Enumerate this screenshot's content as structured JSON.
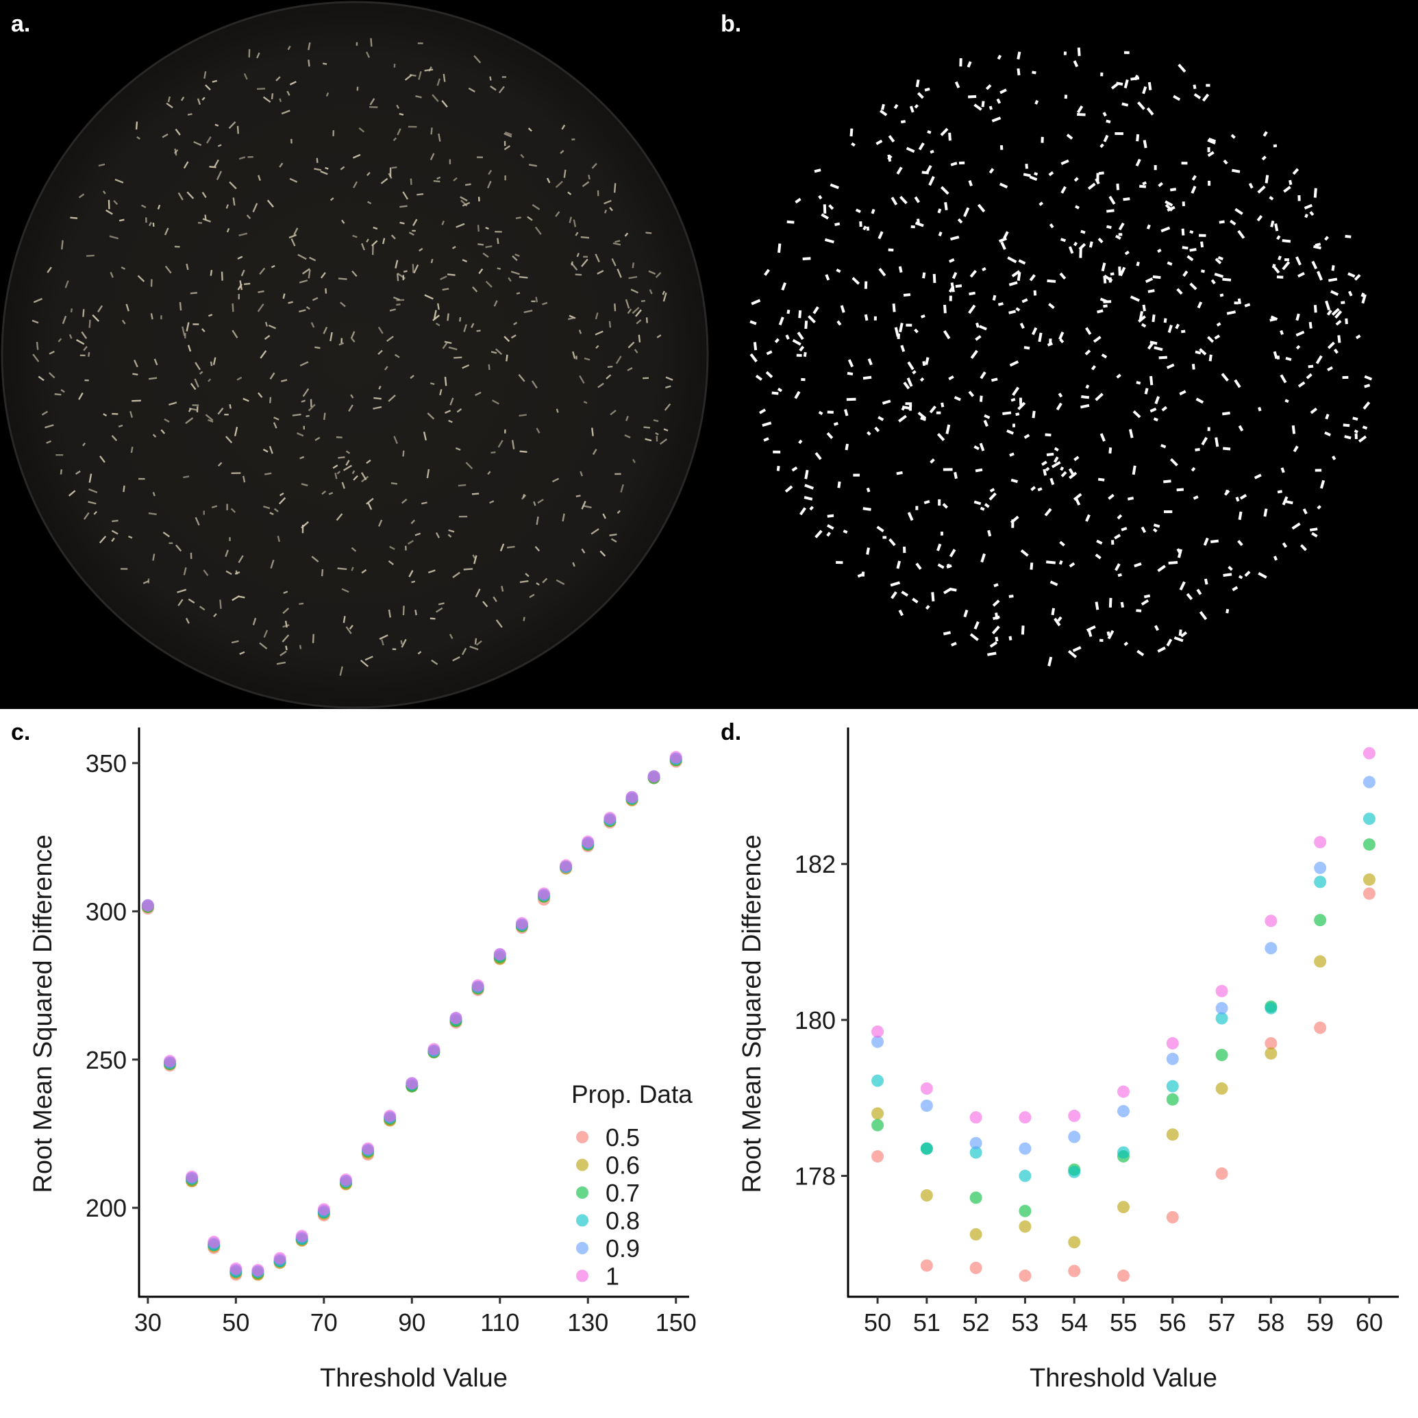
{
  "panels": {
    "a": {
      "label": "a."
    },
    "b": {
      "label": "b."
    },
    "c": {
      "label": "c."
    },
    "d": {
      "label": "d."
    }
  },
  "colors": {
    "0.5": "#F8766D",
    "0.6": "#B79F00",
    "0.7": "#00BA38",
    "0.8": "#00BFC4",
    "0.9": "#619CFF",
    "1": "#F564E3"
  },
  "chart_data": [
    {
      "panel": "c",
      "type": "scatter",
      "xlabel": "Threshold Value",
      "ylabel": "Root Mean Squared Difference",
      "xlim": [
        28,
        153
      ],
      "ylim": [
        170,
        362
      ],
      "xticks": [
        "30",
        "50",
        "70",
        "90",
        "110",
        "130",
        "150"
      ],
      "yticks": [
        "200",
        "250",
        "300",
        "350"
      ],
      "x": [
        30,
        35,
        40,
        45,
        50,
        55,
        60,
        65,
        70,
        75,
        80,
        85,
        90,
        95,
        100,
        105,
        110,
        115,
        120,
        125,
        130,
        135,
        140,
        145,
        150
      ],
      "series": [
        {
          "name": "0.5",
          "values": [
            301.0,
            248.0,
            209.0,
            186.5,
            177.5,
            177.5,
            181.5,
            189.0,
            197.5,
            208.0,
            218.0,
            229.5,
            241.0,
            252.5,
            262.5,
            273.5,
            284.0,
            294.5,
            304.0,
            314.5,
            322.0,
            330.0,
            337.5,
            345.0,
            350.5
          ]
        },
        {
          "name": "0.6",
          "values": [
            301.5,
            248.5,
            209.0,
            187.0,
            178.0,
            177.5,
            181.5,
            189.0,
            198.0,
            208.0,
            218.5,
            229.5,
            241.0,
            252.5,
            263.0,
            274.0,
            284.0,
            295.0,
            305.0,
            314.5,
            322.5,
            330.5,
            337.5,
            345.0,
            351.0
          ]
        },
        {
          "name": "0.7",
          "values": [
            301.5,
            248.5,
            209.5,
            187.5,
            178.5,
            178.0,
            182.0,
            189.5,
            198.5,
            208.5,
            219.0,
            230.0,
            241.0,
            252.5,
            263.0,
            274.0,
            284.5,
            295.0,
            305.0,
            315.0,
            322.5,
            330.5,
            338.0,
            345.0,
            351.0
          ]
        },
        {
          "name": "0.8",
          "values": [
            302.0,
            249.0,
            210.0,
            187.5,
            178.5,
            178.5,
            182.0,
            189.5,
            198.5,
            209.0,
            219.5,
            230.5,
            241.5,
            253.0,
            263.5,
            274.5,
            285.0,
            295.5,
            305.5,
            315.0,
            323.0,
            331.0,
            338.0,
            345.5,
            351.5
          ]
        },
        {
          "name": "0.9",
          "values": [
            302.0,
            249.0,
            210.0,
            188.0,
            179.0,
            178.5,
            182.5,
            190.0,
            199.0,
            209.0,
            219.5,
            230.5,
            242.0,
            253.0,
            264.0,
            274.5,
            285.5,
            295.5,
            305.5,
            315.0,
            323.0,
            331.0,
            338.5,
            345.5,
            351.5
          ]
        },
        {
          "name": "1",
          "values": [
            302.0,
            249.5,
            210.5,
            188.5,
            179.5,
            179.0,
            183.0,
            190.5,
            199.5,
            209.5,
            220.0,
            231.0,
            242.0,
            253.5,
            264.0,
            275.0,
            285.5,
            296.0,
            306.0,
            315.5,
            323.5,
            331.5,
            338.5,
            345.5,
            352.0
          ]
        }
      ],
      "legend": {
        "title": "Prop. Data",
        "position": "bottom-right",
        "entries": [
          "0.5",
          "0.6",
          "0.7",
          "0.8",
          "0.9",
          "1"
        ]
      },
      "grid": false
    },
    {
      "panel": "d",
      "type": "scatter",
      "xlabel": "Threshold Value",
      "ylabel": "Root Mean Squared Difference",
      "xlim": [
        49.4,
        60.6
      ],
      "ylim": [
        176.45,
        183.75
      ],
      "xticks": [
        "50",
        "51",
        "52",
        "53",
        "54",
        "55",
        "56",
        "57",
        "58",
        "59",
        "60"
      ],
      "yticks": [
        "178",
        "180",
        "182"
      ],
      "x": [
        50,
        51,
        52,
        53,
        54,
        55,
        56,
        57,
        58,
        59,
        60
      ],
      "series": [
        {
          "name": "0.5",
          "values": [
            178.25,
            176.85,
            176.82,
            176.72,
            176.78,
            176.72,
            177.47,
            178.03,
            179.7,
            179.9,
            181.62
          ]
        },
        {
          "name": "0.6",
          "values": [
            178.8,
            177.75,
            177.25,
            177.35,
            177.15,
            177.6,
            178.53,
            179.12,
            179.57,
            180.75,
            181.8
          ]
        },
        {
          "name": "0.7",
          "values": [
            178.65,
            178.35,
            177.72,
            177.55,
            178.08,
            178.25,
            178.98,
            179.55,
            180.17,
            181.28,
            182.25
          ]
        },
        {
          "name": "0.8",
          "values": [
            179.22,
            178.35,
            178.3,
            178.0,
            178.05,
            178.3,
            179.15,
            180.02,
            180.15,
            181.77,
            182.58
          ]
        },
        {
          "name": "0.9",
          "values": [
            179.72,
            178.9,
            178.42,
            178.35,
            178.5,
            178.83,
            179.5,
            180.15,
            180.92,
            181.95,
            183.05
          ]
        },
        {
          "name": "1",
          "values": [
            179.85,
            179.12,
            178.75,
            178.75,
            178.77,
            179.08,
            179.7,
            180.37,
            181.27,
            182.28,
            183.42
          ]
        }
      ],
      "grid": false
    }
  ]
}
